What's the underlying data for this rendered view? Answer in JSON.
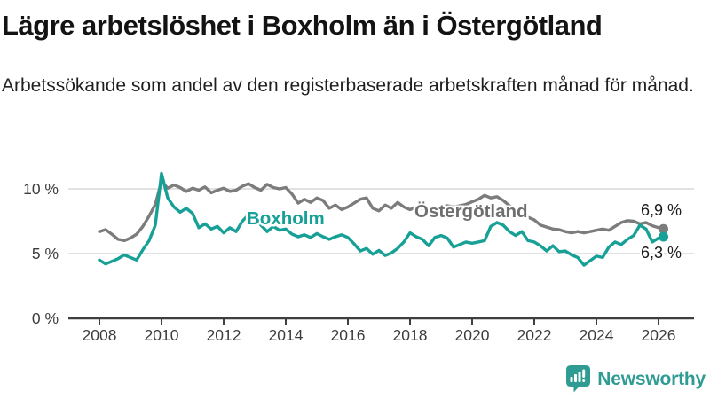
{
  "header": {
    "title": "Lägre arbetslöshet i Boxholm än i Östergötland",
    "subtitle": "Arbetssökande som andel av den registerbaserade arbetskraften månad för månad."
  },
  "chart_data": {
    "type": "line",
    "title": "Lägre arbetslöshet i Boxholm än i Östergötland",
    "subtitle": "Arbetssökande som andel av den registerbaserade arbetskraften månad för månad.",
    "x_unit": "year",
    "x_start": 2008.0,
    "x_step": 0.2,
    "xlim": [
      2007.0,
      2027.0
    ],
    "ylim": [
      0,
      11.5
    ],
    "grid": "horizontal",
    "yticks": [
      {
        "value": 0,
        "label": "0 %"
      },
      {
        "value": 5,
        "label": "5 %"
      },
      {
        "value": 10,
        "label": "10 %"
      }
    ],
    "xticks": [
      2008,
      2010,
      2012,
      2014,
      2016,
      2018,
      2020,
      2022,
      2024,
      2026
    ],
    "series": [
      {
        "name": "Östergötland",
        "color": "#7c7c7c",
        "label_color": "#6f6f6f",
        "end_label": "6,9 %",
        "end_value": 6.9,
        "values": [
          6.7,
          6.85,
          6.5,
          6.1,
          6.0,
          6.2,
          6.5,
          7.1,
          7.9,
          8.8,
          10.6,
          10.05,
          10.3,
          10.1,
          9.8,
          10.05,
          9.9,
          10.15,
          9.7,
          9.9,
          10.05,
          9.8,
          9.9,
          10.2,
          10.4,
          10.1,
          9.9,
          10.35,
          10.1,
          10.0,
          10.1,
          9.6,
          8.9,
          9.2,
          8.95,
          9.3,
          9.1,
          8.5,
          8.75,
          8.4,
          8.6,
          8.9,
          9.2,
          9.3,
          8.5,
          8.3,
          8.75,
          8.5,
          8.95,
          8.6,
          8.4,
          8.6,
          8.5,
          8.4,
          8.5,
          8.6,
          8.7,
          8.6,
          8.7,
          8.8,
          9.0,
          9.2,
          9.5,
          9.3,
          9.4,
          9.1,
          8.7,
          8.4,
          8.1,
          7.8,
          7.6,
          7.2,
          7.05,
          6.9,
          6.85,
          6.7,
          6.6,
          6.7,
          6.6,
          6.7,
          6.8,
          6.9,
          6.8,
          7.1,
          7.4,
          7.55,
          7.5,
          7.3,
          7.4,
          7.15,
          7.0,
          6.9
        ]
      },
      {
        "name": "Boxholm",
        "color": "#16A096",
        "label_color": "#16A096",
        "end_label": "6,3 %",
        "end_value": 6.3,
        "values": [
          4.5,
          4.2,
          4.4,
          4.6,
          4.9,
          4.7,
          4.5,
          5.3,
          6.0,
          7.2,
          11.2,
          9.3,
          8.6,
          8.2,
          8.5,
          8.1,
          7.0,
          7.3,
          6.9,
          7.1,
          6.6,
          7.0,
          6.7,
          7.5,
          8.0,
          7.8,
          7.2,
          6.7,
          7.1,
          6.8,
          6.9,
          6.5,
          6.3,
          6.45,
          6.25,
          6.55,
          6.3,
          6.1,
          6.3,
          6.45,
          6.25,
          5.75,
          5.2,
          5.4,
          4.95,
          5.25,
          4.85,
          5.05,
          5.4,
          5.9,
          6.6,
          6.3,
          6.1,
          5.6,
          6.25,
          6.4,
          6.2,
          5.5,
          5.7,
          5.9,
          5.8,
          5.9,
          6.0,
          7.1,
          7.4,
          7.2,
          6.7,
          6.4,
          6.7,
          6.0,
          5.9,
          5.6,
          5.2,
          5.6,
          5.15,
          5.2,
          4.9,
          4.7,
          4.1,
          4.45,
          4.8,
          4.7,
          5.5,
          5.9,
          5.7,
          6.1,
          6.4,
          7.2,
          6.9,
          5.9,
          6.2,
          6.3
        ]
      }
    ],
    "colors": {
      "grid": "#d8d8d8",
      "axis": "#3f3f3f",
      "tick_text": "#3c3c3c",
      "end_label_text": "#1a1a1a",
      "brand": "#2E9C93"
    },
    "legend_position": "inline-labels"
  },
  "footer": {
    "brand": "Newsworthy"
  }
}
